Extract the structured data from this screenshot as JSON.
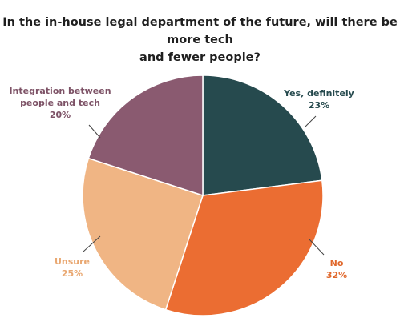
{
  "chart_data": {
    "type": "pie",
    "title_lines": [
      "In the in-house legal department of the future, will there be more tech",
      "and fewer people?"
    ],
    "slices": [
      {
        "label": "Yes, definitely",
        "value": 23,
        "value_text": "23%",
        "color": "#264a4e",
        "label_color": "#264a4e"
      },
      {
        "label": "No",
        "value": 32,
        "value_text": "32%",
        "color": "#eb6d32",
        "label_color": "#e0682c"
      },
      {
        "label": "Unsure",
        "value": 25,
        "value_text": "25%",
        "color": "#f0b584",
        "label_color": "#e9a872"
      },
      {
        "label": "Integration between people and tech",
        "label_lines": [
          "Integration between",
          "people and tech"
        ],
        "value": 20,
        "value_text": "20%",
        "color": "#8a5a70",
        "label_color": "#7d5266"
      }
    ],
    "start": "12 o'clock",
    "direction": "clockwise",
    "legend": "none",
    "labels": "outside with leader lines"
  }
}
